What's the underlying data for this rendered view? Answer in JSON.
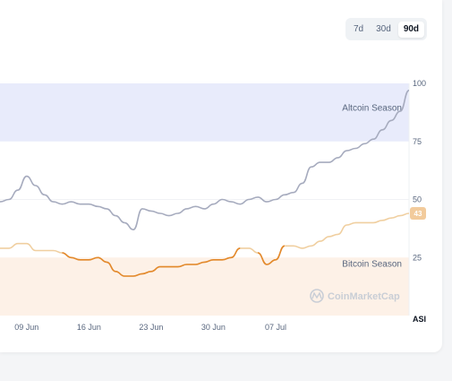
{
  "range_options": [
    "7d",
    "30d",
    "90d"
  ],
  "range_selected": "90d",
  "watermark": "CoinMarketCap",
  "axis_label": "ASI",
  "colors": {
    "altcoin_zone": "#e8ebfb",
    "bitcoin_zone": "#fdf1e7",
    "index_line": "#a6abbe",
    "bitcoin_line": "#f0cfa0",
    "bitcoin_line_strong": "#e3892c",
    "badge": "#f2cb9c"
  },
  "chart_data": {
    "type": "line",
    "ylim": [
      0,
      100
    ],
    "y_ticks": [
      "100",
      "75",
      "50",
      "25"
    ],
    "x_ticks": [
      "09 Jun",
      "16 Jun",
      "23 Jun",
      "30 Jun",
      "07 Jul"
    ],
    "zones": [
      {
        "label": "Altcoin Season",
        "from": 75,
        "to": 100
      },
      {
        "label": "Bitcoin Season",
        "from": 0,
        "to": 25
      }
    ],
    "x": [
      "06 Jun",
      "07 Jun",
      "08 Jun",
      "09 Jun",
      "10 Jun",
      "11 Jun",
      "12 Jun",
      "13 Jun",
      "14 Jun",
      "15 Jun",
      "16 Jun",
      "17 Jun",
      "18 Jun",
      "19 Jun",
      "20 Jun",
      "21 Jun",
      "22 Jun",
      "23 Jun",
      "24 Jun",
      "25 Jun",
      "26 Jun",
      "27 Jun",
      "28 Jun",
      "29 Jun",
      "30 Jun",
      "01 Jul",
      "02 Jul",
      "03 Jul",
      "04 Jul",
      "05 Jul",
      "06 Jul",
      "07 Jul",
      "08 Jul",
      "09 Jul",
      "10 Jul",
      "11 Jul",
      "12 Jul",
      "13 Jul",
      "14 Jul",
      "15 Jul",
      "16 Jul",
      "17 Jul",
      "18 Jul",
      "19 Jul",
      "20 Jul",
      "21 Jul",
      "22 Jul"
    ],
    "series": [
      {
        "values": [
          49,
          50,
          54,
          60,
          56,
          52,
          49,
          48,
          49,
          48,
          48,
          47,
          46,
          43,
          40,
          37,
          46,
          45,
          44,
          43,
          44,
          46,
          47,
          46,
          48,
          50,
          49,
          48,
          50,
          51,
          49,
          50,
          52,
          53,
          57,
          64,
          66,
          66,
          68,
          71,
          72,
          74,
          76,
          80,
          84,
          88,
          97
        ]
      },
      {
        "values": [
          29,
          29,
          31,
          31,
          28,
          28,
          28,
          27,
          25,
          24,
          24,
          25,
          23,
          19,
          17,
          17,
          18,
          19,
          21,
          21,
          21,
          22,
          22,
          23,
          24,
          24,
          25,
          29,
          29,
          27,
          22,
          24,
          30,
          30,
          29,
          30,
          32,
          34,
          35,
          39,
          40,
          40,
          40,
          41,
          42,
          43,
          44
        ]
      }
    ],
    "badge_value": "43"
  }
}
